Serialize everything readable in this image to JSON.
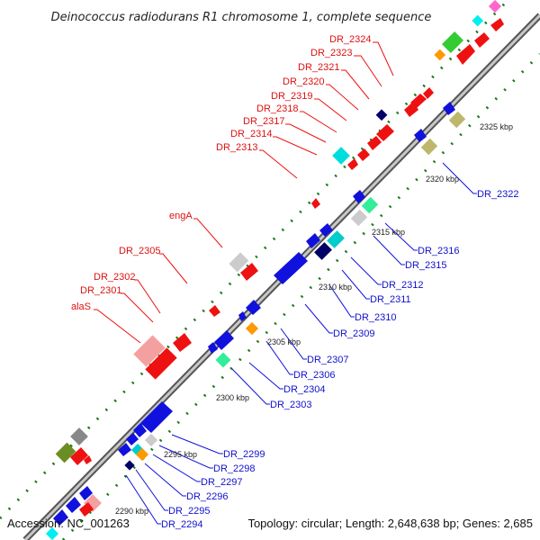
{
  "title": "Deinococcus radiodurans R1 chromosome 1, complete sequence",
  "footer": {
    "accession": "Accession: NC_001263",
    "summary": "Topology: circular; Length: 2,648,638 bp; Genes: 2,685"
  },
  "colors": {
    "label_forward": "#dd1111",
    "label_reverse": "#1111cc",
    "backbone": "#808080",
    "tick": "#1a7a1a"
  },
  "scale_labels": [
    "2290 kbp",
    "2295 kbp",
    "2300 kbp",
    "2305 kbp",
    "2310 kbp",
    "2315 kbp",
    "2320 kbp",
    "2325 kbp"
  ],
  "forward_labels": [
    "DR_2324",
    "DR_2323",
    "DR_2321",
    "DR_2320",
    "DR_2319",
    "DR_2318",
    "DR_2317",
    "DR_2314",
    "DR_2313",
    "engA",
    "DR_2305",
    "DR_2302",
    "DR_2301",
    "alaS"
  ],
  "reverse_labels": [
    "DR_2322",
    "DR_2316",
    "DR_2315",
    "DR_2312",
    "DR_2311",
    "DR_2310",
    "DR_2309",
    "DR_2307",
    "DR_2306",
    "DR_2304",
    "DR_2303",
    "DR_2299",
    "DR_2298",
    "DR_2297",
    "DR_2296",
    "DR_2295",
    "DR_2294"
  ]
}
